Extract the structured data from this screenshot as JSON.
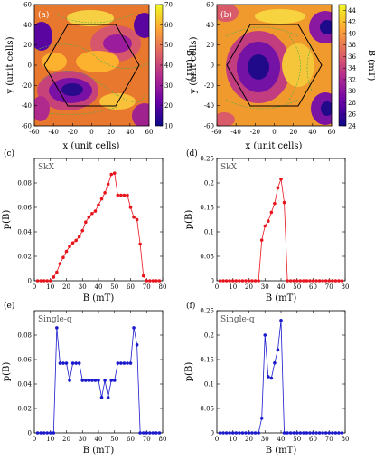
{
  "colormaps": {
    "plasma": [
      "#0d0887",
      "#6a00a8",
      "#b12a90",
      "#e16462",
      "#fca636",
      "#f0f921"
    ]
  },
  "maps": [
    {
      "panel_label": "(a)",
      "xlabel": "x (unit cells)",
      "ylabel": "y (unit cells)",
      "colorbar_label": "B (mT)",
      "x_ticks": [
        "-60",
        "-40",
        "-20",
        "0",
        "20",
        "40",
        "60"
      ],
      "y_ticks": [
        "60",
        "40",
        "20",
        "0",
        "-20",
        "-40",
        "-60"
      ],
      "colorbar_ticks": [
        "70",
        "60",
        "50",
        "40",
        "30",
        "20",
        "10"
      ],
      "colorbar_range": [
        10,
        70
      ]
    },
    {
      "panel_label": "(b)",
      "xlabel": "x (unit cells)",
      "ylabel": "y (unit cells)",
      "colorbar_label": "B (mT)",
      "x_ticks": [
        "-60",
        "-40",
        "-20",
        "0",
        "20",
        "40",
        "60"
      ],
      "y_ticks": [
        "60",
        "40",
        "20",
        "0",
        "-20",
        "-40",
        "-60"
      ],
      "colorbar_ticks": [
        "44",
        "42",
        "40",
        "38",
        "36",
        "34",
        "32",
        "30",
        "28",
        "26",
        "24"
      ],
      "colorbar_range": [
        24,
        45
      ]
    }
  ],
  "chart_data": [
    {
      "type": "line",
      "panel_label": "(c)",
      "annotation": "SkX",
      "xlabel": "B (mT)",
      "ylabel": "p(B)",
      "xlim": [
        0,
        80
      ],
      "ylim": [
        0,
        0.1
      ],
      "x_ticks": [
        "0",
        "10",
        "20",
        "30",
        "40",
        "50",
        "60",
        "70",
        "80"
      ],
      "y_ticks": [
        "0",
        "0.02",
        "0.04",
        "0.06",
        "0.08"
      ],
      "color": "#e8141c",
      "series": [
        {
          "x": [
            2,
            4,
            6,
            8,
            10,
            12,
            14,
            16,
            18,
            20,
            22,
            24,
            26,
            28,
            30,
            32,
            34,
            36,
            38,
            40,
            42,
            44,
            46,
            48,
            50,
            52,
            54,
            56,
            58,
            60,
            62,
            64,
            66,
            68,
            70,
            72,
            74,
            76,
            78
          ],
          "y": [
            0,
            0,
            0,
            0,
            0,
            0.003,
            0.007,
            0.014,
            0.019,
            0.024,
            0.028,
            0.031,
            0.033,
            0.036,
            0.041,
            0.048,
            0.052,
            0.055,
            0.057,
            0.062,
            0.067,
            0.072,
            0.079,
            0.087,
            0.088,
            0.07,
            0.07,
            0.07,
            0.07,
            0.06,
            0.052,
            0.05,
            0.03,
            0.004,
            0,
            0,
            0,
            0,
            0
          ]
        }
      ]
    },
    {
      "type": "line",
      "panel_label": "(d)",
      "annotation": "SkX",
      "xlabel": "B (mT)",
      "ylabel": "p(B)",
      "xlim": [
        0,
        80
      ],
      "ylim": [
        0,
        0.25
      ],
      "x_ticks": [
        "0",
        "10",
        "20",
        "30",
        "40",
        "50",
        "60",
        "70",
        "80"
      ],
      "y_ticks": [
        "0",
        "0.05",
        "0.1",
        "0.15",
        "0.2",
        "0.25"
      ],
      "color": "#e8141c",
      "series": [
        {
          "x": [
            2,
            4,
            6,
            8,
            10,
            12,
            14,
            16,
            18,
            20,
            22,
            24,
            26,
            28,
            30,
            32,
            34,
            36,
            38,
            40,
            42,
            44,
            46,
            48,
            50,
            52,
            54,
            56,
            58,
            60,
            62,
            64,
            66,
            68,
            70,
            72,
            74,
            76,
            78
          ],
          "y": [
            0,
            0,
            0,
            0,
            0,
            0,
            0,
            0,
            0,
            0,
            0,
            0,
            0,
            0.083,
            0.112,
            0.122,
            0.14,
            0.158,
            0.19,
            0.208,
            0.16,
            0,
            0,
            0,
            0,
            0,
            0,
            0,
            0,
            0,
            0,
            0,
            0,
            0,
            0,
            0,
            0,
            0,
            0
          ]
        }
      ]
    },
    {
      "type": "line",
      "panel_label": "(e)",
      "annotation": "Single-q",
      "xlabel": "B (mT)",
      "ylabel": "p(B)",
      "xlim": [
        0,
        80
      ],
      "ylim": [
        0,
        0.1
      ],
      "x_ticks": [
        "0",
        "10",
        "20",
        "30",
        "40",
        "50",
        "60",
        "70",
        "80"
      ],
      "y_ticks": [
        "0",
        "0.02",
        "0.04",
        "0.06",
        "0.08"
      ],
      "color": "#1a1acc",
      "series": [
        {
          "x": [
            2,
            4,
            6,
            8,
            10,
            12,
            14,
            16,
            18,
            20,
            22,
            24,
            26,
            28,
            30,
            32,
            34,
            36,
            38,
            40,
            42,
            44,
            46,
            48,
            50,
            52,
            54,
            56,
            58,
            60,
            62,
            64,
            66,
            68,
            70,
            72,
            74,
            76,
            78
          ],
          "y": [
            0,
            0,
            0,
            0,
            0,
            0,
            0.086,
            0.057,
            0.057,
            0.057,
            0.043,
            0.057,
            0.057,
            0.057,
            0.043,
            0.043,
            0.043,
            0.043,
            0.043,
            0.043,
            0.029,
            0.043,
            0.029,
            0.043,
            0.043,
            0.057,
            0.057,
            0.057,
            0.057,
            0.057,
            0.086,
            0.072,
            0.0,
            0,
            0,
            0,
            0,
            0,
            0
          ]
        }
      ]
    },
    {
      "type": "line",
      "panel_label": "(f)",
      "annotation": "Single-q",
      "xlabel": "B (mT)",
      "ylabel": "p(B)",
      "xlim": [
        0,
        80
      ],
      "ylim": [
        0,
        0.25
      ],
      "x_ticks": [
        "0",
        "10",
        "20",
        "30",
        "40",
        "50",
        "60",
        "70",
        "80"
      ],
      "y_ticks": [
        "0",
        "0.05",
        "0.1",
        "0.15",
        "0.2",
        "0.25"
      ],
      "color": "#1a1acc",
      "series": [
        {
          "x": [
            2,
            4,
            6,
            8,
            10,
            12,
            14,
            16,
            18,
            20,
            22,
            24,
            26,
            28,
            30,
            32,
            34,
            36,
            38,
            40,
            42,
            44,
            46,
            48,
            50,
            52,
            54,
            56,
            58,
            60,
            62,
            64,
            66,
            68,
            70,
            72,
            74,
            76,
            78
          ],
          "y": [
            0,
            0,
            0,
            0,
            0,
            0,
            0,
            0,
            0,
            0,
            0,
            0,
            0,
            0.03,
            0.2,
            0.115,
            0.112,
            0.143,
            0.17,
            0.23,
            0,
            0,
            0,
            0,
            0,
            0,
            0,
            0,
            0,
            0,
            0,
            0,
            0,
            0,
            0,
            0,
            0,
            0,
            0
          ]
        }
      ]
    }
  ]
}
